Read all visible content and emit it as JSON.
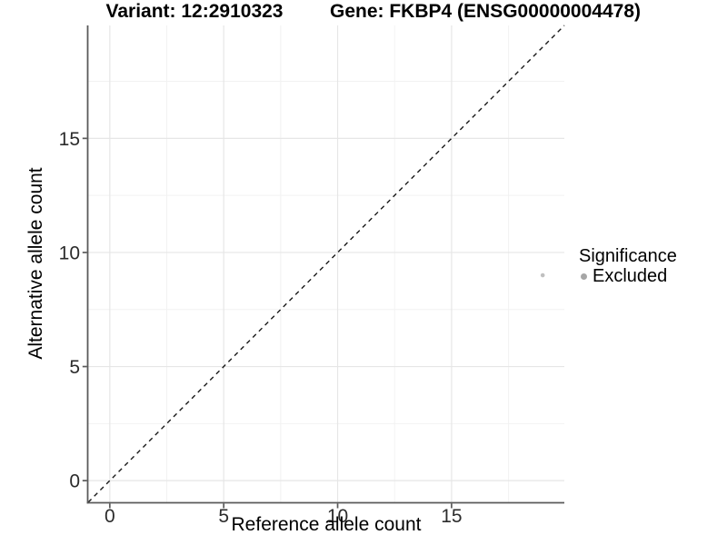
{
  "chart_data": {
    "type": "scatter",
    "titles": {
      "variant": "Variant: 12:2910323",
      "gene": "Gene: FKBP4 (ENSG00000004478)"
    },
    "xlabel": "Reference allele count",
    "ylabel": "Alternative allele count",
    "xlim": [
      -0.95,
      19.95
    ],
    "ylim": [
      -0.95,
      19.95
    ],
    "x_ticks": [
      0,
      5,
      10,
      15
    ],
    "y_ticks": [
      0,
      5,
      10,
      15
    ],
    "x_minor_ticks": [
      2.5,
      7.5,
      12.5,
      17.5
    ],
    "y_minor_ticks": [
      2.5,
      7.5,
      12.5,
      17.5
    ],
    "grid": "major+minor",
    "points": [
      {
        "x": 19,
        "y": 9,
        "series": "Excluded"
      }
    ],
    "identity_line": {
      "slope": 1,
      "intercept": 0,
      "style": "dashed"
    },
    "legend": {
      "title": "Significance",
      "position": "right",
      "items": [
        {
          "label": "Excluded",
          "color": "#a6a6a6"
        }
      ]
    },
    "colors": {
      "point": "#c0c0c0",
      "grid_major": "#e6e6e6",
      "grid_minor": "#f2f2f2",
      "axis_line": "#5a5a5a",
      "tick_text": "#2b2b2b",
      "dashed_line": "#1a1a1a",
      "background": "#ffffff"
    }
  }
}
